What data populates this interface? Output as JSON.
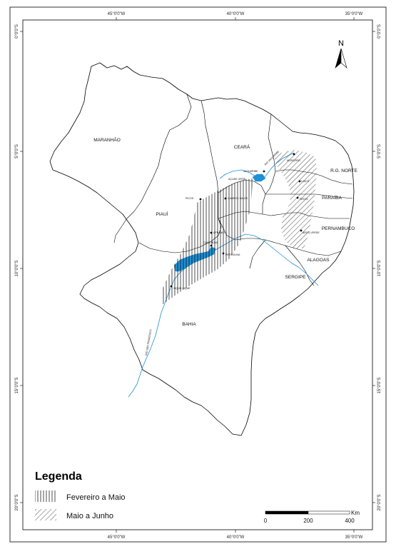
{
  "map": {
    "graticule_top": [
      "45°0'0\"W",
      "40°0'0\"W",
      "35°0'0\"W"
    ],
    "graticule_bottom": [
      "45°0'0\"W",
      "40°0'0\"W",
      "35°0'0\"W"
    ],
    "graticule_left": [
      "0°0'0\"S",
      "5°0'0\"S",
      "10°0'0\"S",
      "15°0'0\"S",
      "20°0'0\"S"
    ],
    "graticule_right": [
      "0°0'0\"S",
      "5°0'0\"S",
      "10°0'0\"S",
      "15°0'0\"S",
      "20°0'0\"S"
    ],
    "states": {
      "maranhao": "MARANHÃO",
      "ceara": "CEARÁ",
      "piaui": "PIAUÍ",
      "rg_norte": "R.G. NORTE",
      "paraiba": "PARAÍBA",
      "pernambuco": "PERNAMBUCO",
      "alagoas": "ALAGOAS",
      "sergipe": "SERGIPE",
      "bahia": "BAHIA"
    },
    "places": {
      "picos": "PICOS",
      "campos_sales": "CAMPOS SALES",
      "jaguaribe": "JAGUARIBE",
      "acude_oros": "AÇUDE ORÓS",
      "mossoro": "MOSSORÓ",
      "caico": "CAICÓ",
      "patos": "PATOS",
      "arco_verde": "ARCO VERDE",
      "afranio": "AFRANIO",
      "casa_nova": "CASA NOVA",
      "petrolina": "PETROLINA",
      "xique_xique": "XIQUE-XIQUE"
    },
    "rivers": {
      "jaguaribe": "RIO JAGUARIBE",
      "sao_francisco": "RIO SÃO FRANCISCO"
    },
    "north_label": "N",
    "colors": {
      "water": "#1e90d6",
      "border": "#000000"
    }
  },
  "legend": {
    "title": "Legenda",
    "items": [
      {
        "label": "Fevereiro a Maio",
        "pattern": "vertical-lines"
      },
      {
        "label": "Maio a Junho",
        "pattern": "diagonal-lines"
      }
    ]
  },
  "scale_bar": {
    "unit": "Km",
    "labels": [
      "0",
      "200",
      "400"
    ]
  }
}
